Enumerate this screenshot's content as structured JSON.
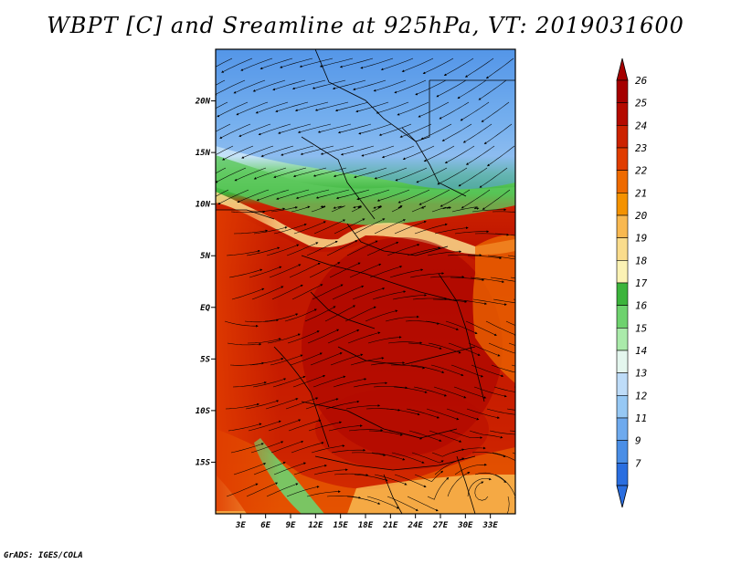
{
  "title": "WBPT [C] and Sreamline at 925hPa, VT: 2019031600",
  "footer": "GrADS: IGES/COLA",
  "map": {
    "lon_range": [
      0,
      36
    ],
    "lat_range": [
      -20,
      25
    ],
    "lat_ticks": [
      {
        "label": "20N",
        "value": 20
      },
      {
        "label": "15N",
        "value": 15
      },
      {
        "label": "10N",
        "value": 10
      },
      {
        "label": "5N",
        "value": 5
      },
      {
        "label": "EQ",
        "value": 0
      },
      {
        "label": "5S",
        "value": -5
      },
      {
        "label": "10S",
        "value": -10
      },
      {
        "label": "15S",
        "value": -15
      }
    ],
    "lon_ticks": [
      {
        "label": "3E",
        "value": 3
      },
      {
        "label": "6E",
        "value": 6
      },
      {
        "label": "9E",
        "value": 9
      },
      {
        "label": "12E",
        "value": 12
      },
      {
        "label": "15E",
        "value": 15
      },
      {
        "label": "18E",
        "value": 18
      },
      {
        "label": "21E",
        "value": 21
      },
      {
        "label": "24E",
        "value": 24
      },
      {
        "label": "27E",
        "value": 27
      },
      {
        "label": "30E",
        "value": 30
      },
      {
        "label": "33E",
        "value": 33
      }
    ]
  },
  "colorbar": {
    "levels": [
      {
        "label": "26",
        "color": "#a50000"
      },
      {
        "label": "25",
        "color": "#b40a00"
      },
      {
        "label": "24",
        "color": "#cc2200"
      },
      {
        "label": "23",
        "color": "#e03c00"
      },
      {
        "label": "22",
        "color": "#ee6a00"
      },
      {
        "label": "21",
        "color": "#f49200"
      },
      {
        "label": "20",
        "color": "#f8b850"
      },
      {
        "label": "19",
        "color": "#fadc8c"
      },
      {
        "label": "18",
        "color": "#fbf2b4"
      },
      {
        "label": "17",
        "color": "#3cb43c"
      },
      {
        "label": "16",
        "color": "#6ed26e"
      },
      {
        "label": "15",
        "color": "#aaeaaa"
      },
      {
        "label": "14",
        "color": "#e4f6ee"
      },
      {
        "label": "13",
        "color": "#bedcf8"
      },
      {
        "label": "12",
        "color": "#96c8f4"
      },
      {
        "label": "11",
        "color": "#6eaaee"
      },
      {
        "label": "9",
        "color": "#4a8ee6"
      },
      {
        "label": "7",
        "color": "#2a6ee0"
      }
    ],
    "bottom_color": "#2a6ee0",
    "top_color": "#a50000"
  }
}
